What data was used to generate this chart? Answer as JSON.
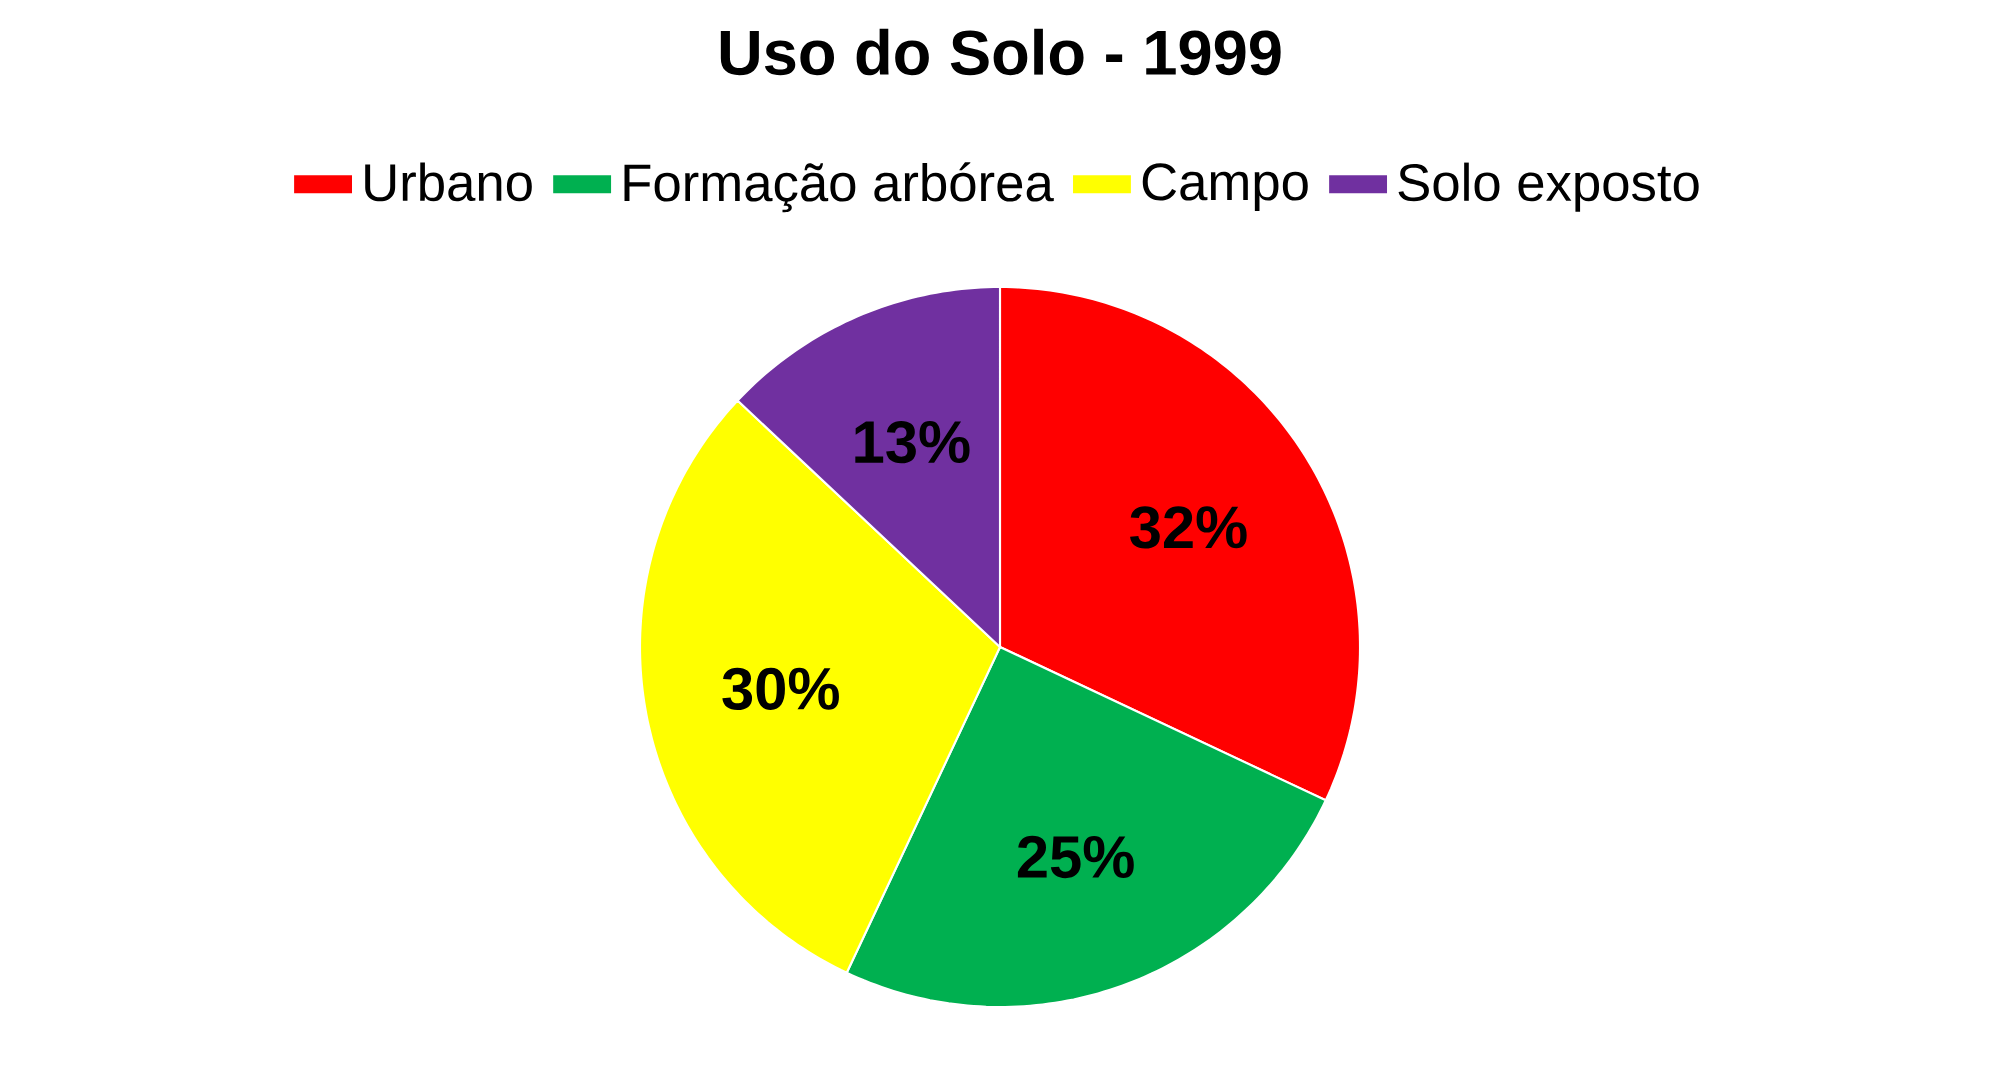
{
  "chart_data": {
    "type": "pie",
    "title": "Uso do Solo - 1999",
    "categories": [
      "Urbano",
      "Formação arbórea",
      "Campo",
      "Solo exposto"
    ],
    "values": [
      32,
      25,
      30,
      13
    ],
    "colors": [
      "#ff0000",
      "#00b050",
      "#ffff00",
      "#7030a0"
    ],
    "value_labels": [
      "32%",
      "25%",
      "30%",
      "13%"
    ],
    "legend": "top"
  }
}
